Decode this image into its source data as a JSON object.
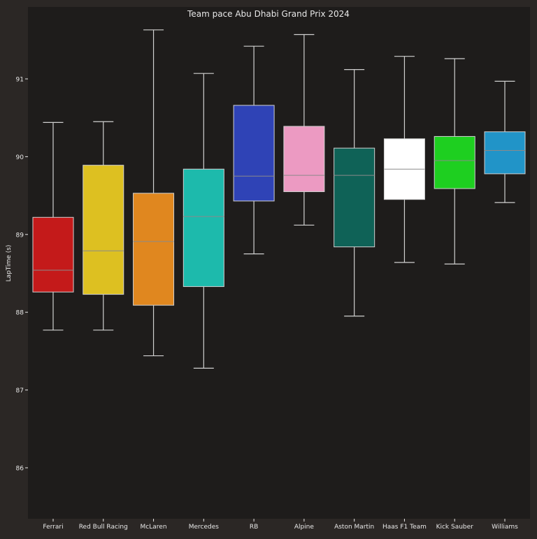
{
  "chart_data": {
    "type": "box",
    "title": "Team pace Abu Dhabi Grand Prix 2024",
    "xlabel": "",
    "ylabel": "LapTime (s)",
    "ylim": [
      85.4,
      91.9
    ],
    "yticks": [
      86,
      87,
      88,
      89,
      90,
      91
    ],
    "grid": false,
    "categories": [
      "Ferrari",
      "Red Bull Racing",
      "McLaren",
      "Mercedes",
      "RB",
      "Alpine",
      "Aston Martin",
      "Haas F1 Team",
      "Kick Sauber",
      "Williams"
    ],
    "boxes": [
      {
        "team": "Ferrari",
        "color": "#c41a1a",
        "min": 87.77,
        "q1": 88.26,
        "median": 88.54,
        "q3": 89.22,
        "max": 90.44
      },
      {
        "team": "Red Bull Racing",
        "color": "#ddc021",
        "min": 87.77,
        "q1": 88.23,
        "median": 88.79,
        "q3": 89.89,
        "max": 90.45
      },
      {
        "team": "McLaren",
        "color": "#e0871f",
        "min": 87.44,
        "q1": 88.09,
        "median": 88.91,
        "q3": 89.53,
        "max": 91.63
      },
      {
        "team": "Mercedes",
        "color": "#1dbaac",
        "min": 87.28,
        "q1": 88.33,
        "median": 89.23,
        "q3": 89.84,
        "max": 91.07
      },
      {
        "team": "RB",
        "color": "#2f43b6",
        "min": 88.75,
        "q1": 89.43,
        "median": 89.75,
        "q3": 90.66,
        "max": 91.42
      },
      {
        "team": "Alpine",
        "color": "#ec9ac2",
        "min": 89.12,
        "q1": 89.55,
        "median": 89.76,
        "q3": 90.39,
        "max": 91.57
      },
      {
        "team": "Aston Martin",
        "color": "#0f6257",
        "min": 87.95,
        "q1": 88.84,
        "median": 89.76,
        "q3": 90.11,
        "max": 91.12
      },
      {
        "team": "Haas F1 Team",
        "color": "#ffffff",
        "min": 88.64,
        "q1": 89.45,
        "median": 89.84,
        "q3": 90.23,
        "max": 91.29
      },
      {
        "team": "Kick Sauber",
        "color": "#1ecf20",
        "min": 88.62,
        "q1": 89.59,
        "median": 89.95,
        "q3": 90.26,
        "max": 91.26
      },
      {
        "team": "Williams",
        "color": "#2194c8",
        "min": 89.41,
        "q1": 89.78,
        "median": 90.08,
        "q3": 90.32,
        "max": 90.97
      }
    ]
  },
  "colors": {
    "figure_background": "#2b2725",
    "plot_background": "#1e1c1b",
    "text": "#e8e8e8",
    "whisker": "#d0d0d0",
    "median_line": "#8a8a8a"
  }
}
